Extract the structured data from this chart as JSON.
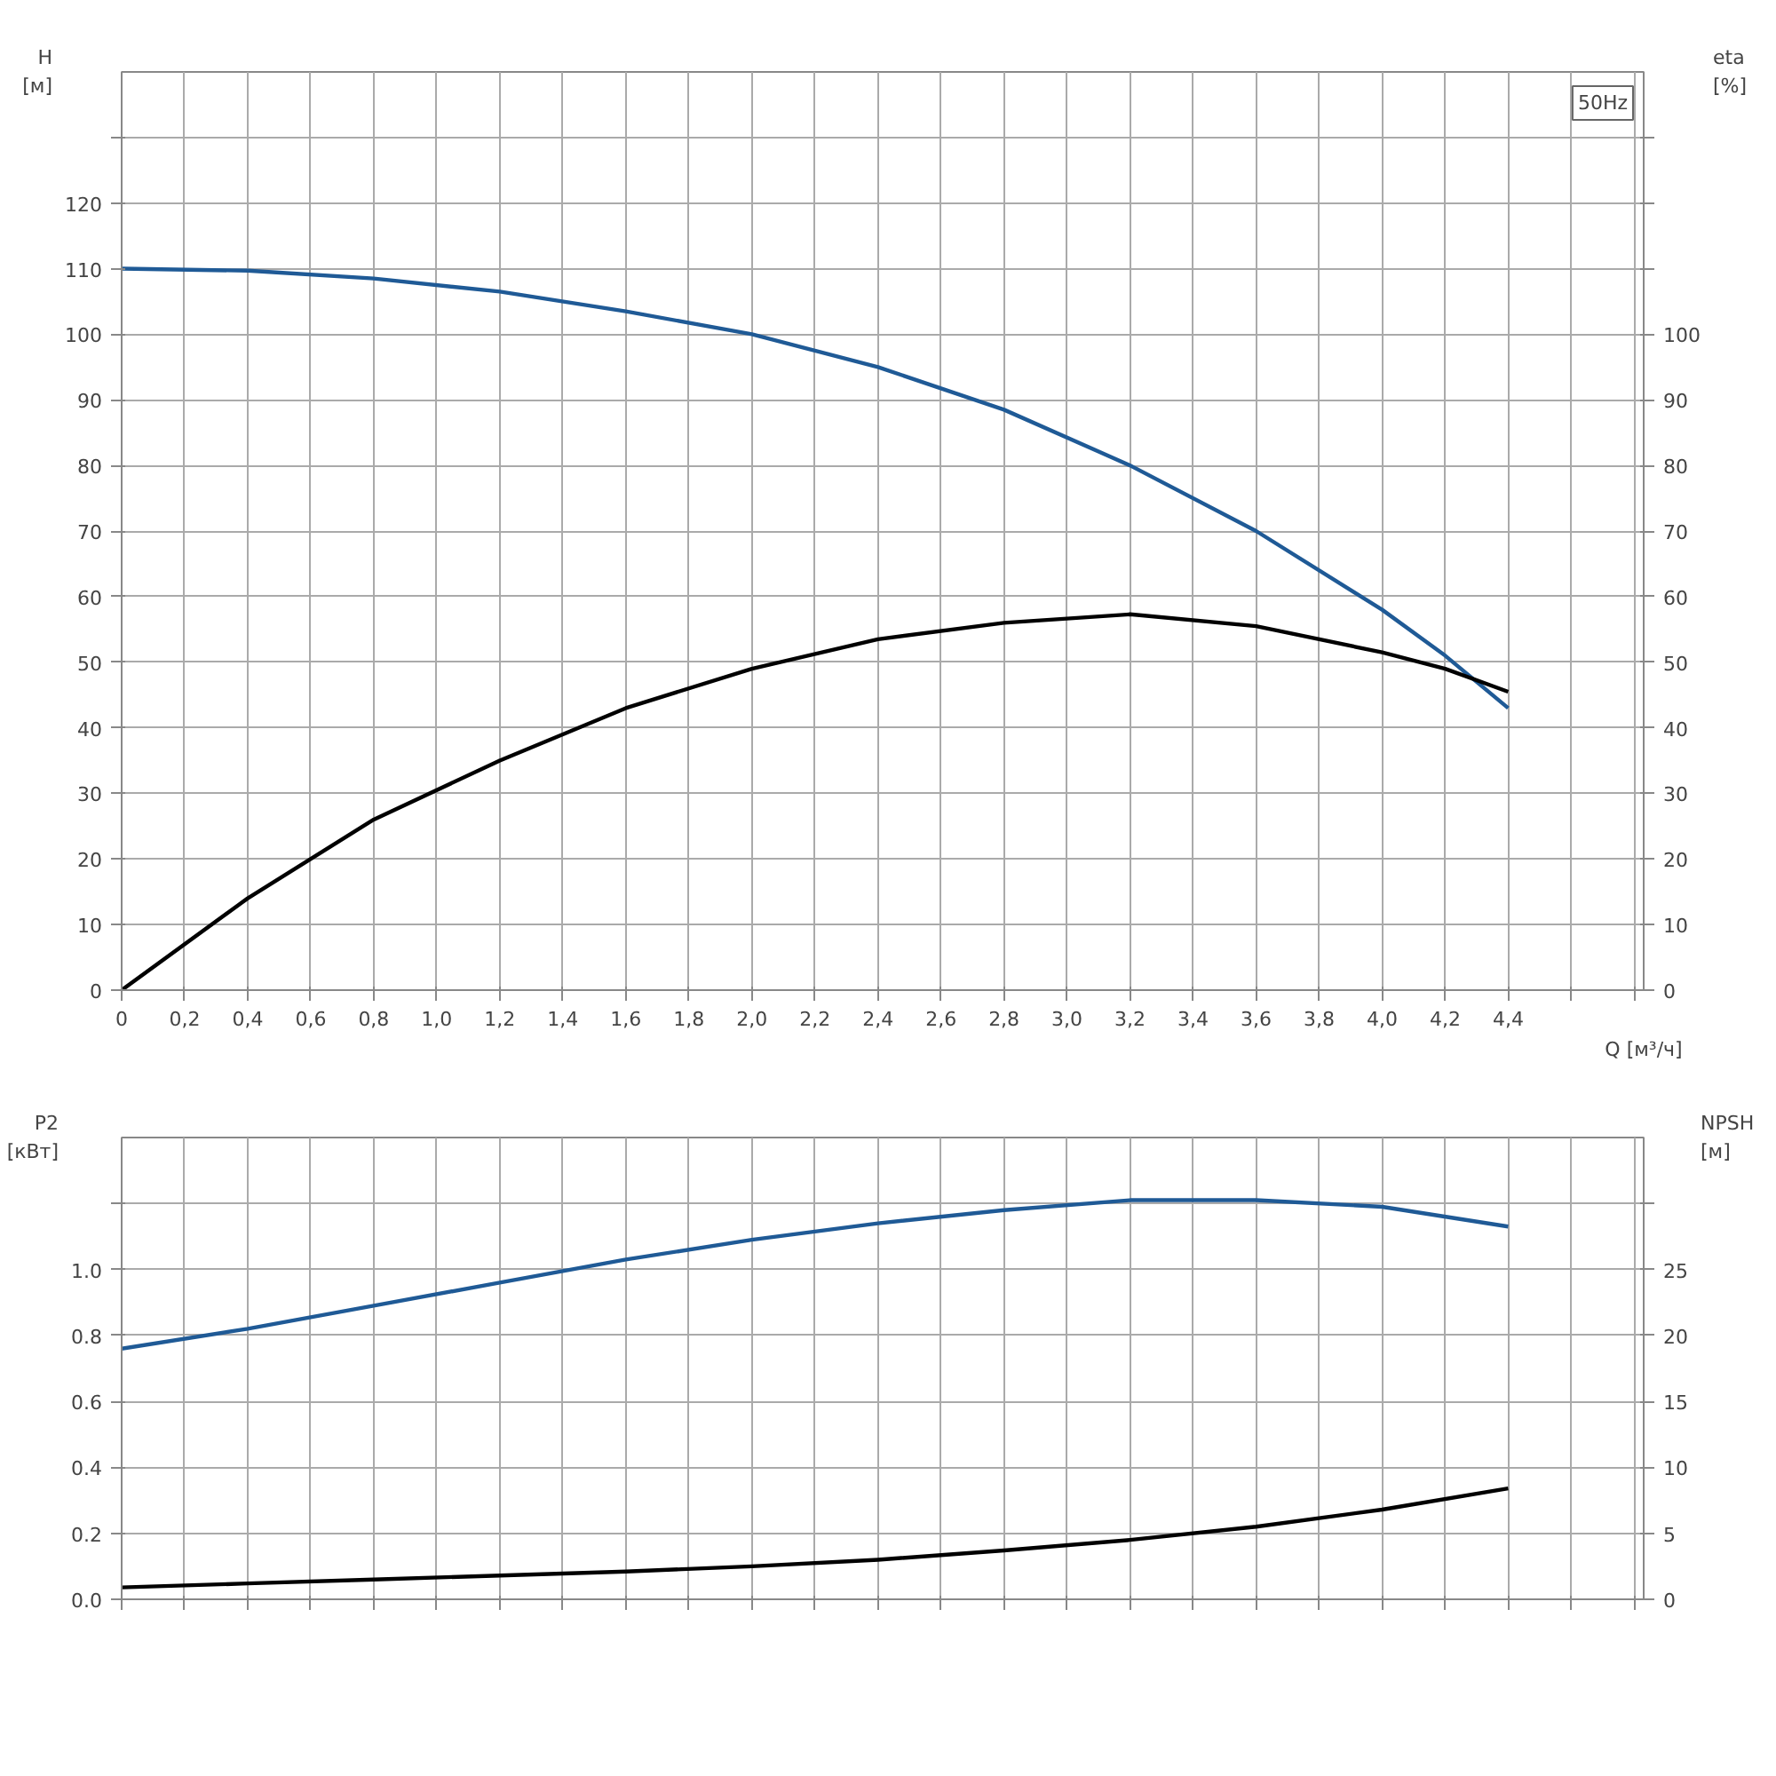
{
  "chart_data": [
    {
      "type": "line",
      "xlabel": "Q [м³/ч]",
      "ylabel": "H [м]",
      "y2label": "eta [%]",
      "annotations": [
        "50Hz"
      ],
      "grid": true,
      "marker": "none",
      "line_style": "solid",
      "x": [
        0,
        0.4,
        0.8,
        1.2,
        1.6,
        2.0,
        2.4,
        2.8,
        3.2,
        3.6,
        4.0,
        4.2,
        4.4
      ],
      "series": [
        {
          "color": "#1f5a96",
          "axis": "y",
          "values": [
            110,
            109.7,
            108.5,
            106.5,
            103.5,
            100,
            95,
            88.5,
            80,
            70,
            58,
            51,
            43
          ]
        },
        {
          "color": "#000000",
          "axis": "y2",
          "values": [
            0,
            14,
            26,
            35,
            43,
            49,
            53.5,
            56,
            57.3,
            55.5,
            51.5,
            49,
            45.5
          ]
        }
      ],
      "xlim": [
        0,
        4.83
      ],
      "xticks": [
        {
          "value": 0,
          "label": "0"
        },
        {
          "value": 0.2,
          "label": "0,2"
        },
        {
          "value": 0.4,
          "label": "0,4"
        },
        {
          "value": 0.6,
          "label": "0,6"
        },
        {
          "value": 0.8,
          "label": "0,8"
        },
        {
          "value": 1.0,
          "label": "1,0"
        },
        {
          "value": 1.2,
          "label": "1,2"
        },
        {
          "value": 1.4,
          "label": "1,4"
        },
        {
          "value": 1.6,
          "label": "1,6"
        },
        {
          "value": 1.8,
          "label": "1,8"
        },
        {
          "value": 2.0,
          "label": "2,0"
        },
        {
          "value": 2.2,
          "label": "2,2"
        },
        {
          "value": 2.4,
          "label": "2,4"
        },
        {
          "value": 2.6,
          "label": "2,6"
        },
        {
          "value": 2.8,
          "label": "2,8"
        },
        {
          "value": 3.0,
          "label": "3,0"
        },
        {
          "value": 3.2,
          "label": "3,2"
        },
        {
          "value": 3.4,
          "label": "3,4"
        },
        {
          "value": 3.6,
          "label": "3,6"
        },
        {
          "value": 3.8,
          "label": "3,8"
        },
        {
          "value": 4.0,
          "label": "4,0"
        },
        {
          "value": 4.2,
          "label": "4,2"
        },
        {
          "value": 4.4,
          "label": "4,4"
        },
        {
          "value": 4.6,
          "label": null
        },
        {
          "value": 4.8,
          "label": null
        }
      ],
      "ylim": [
        0,
        140
      ],
      "yticks": [
        0,
        10,
        20,
        30,
        40,
        50,
        60,
        70,
        80,
        90,
        100,
        110,
        120,
        {
          "value": 130,
          "label": null
        }
      ],
      "y2lim": [
        0,
        140
      ],
      "y2ticks": [
        0,
        10,
        20,
        30,
        40,
        50,
        60,
        70,
        80,
        90,
        100,
        {
          "value": 110,
          "label": null
        },
        {
          "value": 120,
          "label": null
        },
        {
          "value": 130,
          "label": null
        }
      ]
    },
    {
      "type": "line",
      "ylabel": "P2 [кВт]",
      "y2label": "NPSH [м]",
      "grid": true,
      "marker": "none",
      "line_style": "solid",
      "tick_labels": "y",
      "x": [
        0,
        0.4,
        0.8,
        1.2,
        1.6,
        2.0,
        2.4,
        2.8,
        3.2,
        3.6,
        4.0,
        4.4
      ],
      "series": [
        {
          "color": "#1f5a96",
          "axis": "y",
          "values": [
            0.76,
            0.82,
            0.89,
            0.96,
            1.03,
            1.09,
            1.14,
            1.18,
            1.21,
            1.21,
            1.19,
            1.13
          ]
        },
        {
          "color": "#000000",
          "axis": "y2",
          "values": [
            0.9,
            1.2,
            1.5,
            1.8,
            2.1,
            2.5,
            3.0,
            3.7,
            4.5,
            5.5,
            6.8,
            8.4
          ]
        }
      ],
      "xlim": [
        0,
        4.83
      ],
      "xticks": [
        0,
        0.2,
        0.4,
        0.6,
        0.8,
        1.0,
        1.2,
        1.4,
        1.6,
        1.8,
        2.0,
        2.2,
        2.4,
        2.6,
        2.8,
        3.0,
        3.2,
        3.4,
        3.6,
        3.8,
        4.0,
        4.2,
        4.4,
        4.6,
        4.8
      ],
      "ylim": [
        0,
        1.4
      ],
      "yticks": [
        {
          "value": 0,
          "label": "0.0"
        },
        {
          "value": 0.2,
          "label": "0.2"
        },
        {
          "value": 0.4,
          "label": "0.4"
        },
        {
          "value": 0.6,
          "label": "0.6"
        },
        {
          "value": 0.8,
          "label": "0.8"
        },
        {
          "value": 1.0,
          "label": "1.0"
        },
        {
          "value": 1.2,
          "label": null
        }
      ],
      "y2lim": [
        0,
        35
      ],
      "y2ticks": [
        0,
        5,
        10,
        15,
        20,
        25,
        {
          "value": 30,
          "label": null
        }
      ]
    }
  ]
}
